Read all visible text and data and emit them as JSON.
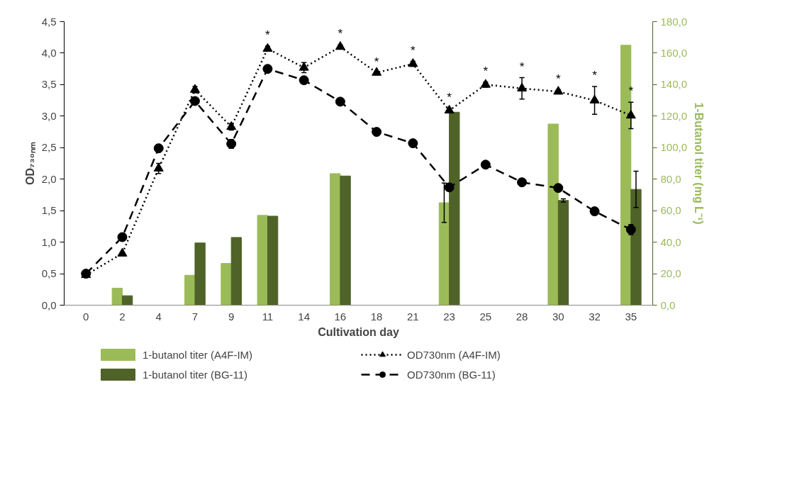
{
  "chart_data": {
    "type": "bar",
    "xlabel": "Cultivation day",
    "ylabel": "OD₇₃₀ₙₘ",
    "y2label": "1-Butanol titer (mg L⁻¹)",
    "categories": [
      "0",
      "2",
      "4",
      "7",
      "9",
      "11",
      "14",
      "16",
      "18",
      "21",
      "23",
      "25",
      "28",
      "30",
      "32",
      "35"
    ],
    "series": [
      {
        "name": "1-butanol titer (A4F-IM)",
        "axis": "y2",
        "color": "#9bbb59",
        "values": [
          null,
          10.8,
          null,
          19,
          26.5,
          57,
          null,
          83.5,
          null,
          null,
          65,
          null,
          null,
          115,
          null,
          165
        ],
        "errors": [
          null,
          null,
          null,
          null,
          null,
          null,
          null,
          null,
          null,
          null,
          12.5,
          null,
          null,
          null,
          null,
          null
        ]
      },
      {
        "name": "1-butanol titer (BG-11)",
        "axis": "y2",
        "color": "#4f6228",
        "values": [
          null,
          6,
          null,
          39.5,
          43,
          56.5,
          null,
          82,
          null,
          null,
          122.5,
          null,
          null,
          66.5,
          null,
          73.5
        ],
        "errors": [
          null,
          null,
          null,
          null,
          null,
          null,
          null,
          null,
          null,
          null,
          null,
          null,
          null,
          1,
          null,
          11.5
        ]
      },
      {
        "name": "OD730nm (A4F-IM)",
        "type": "line",
        "color": "#000000",
        "marker": "triangle",
        "line_style": "dotted",
        "values": [
          0.48,
          0.82,
          2.17,
          3.42,
          2.83,
          4.07,
          3.77,
          4.1,
          3.69,
          3.83,
          3.09,
          3.5,
          3.44,
          3.39,
          3.25,
          3.01
        ],
        "errors": [
          null,
          null,
          0.08,
          0.05,
          0.05,
          0.04,
          0.08,
          0.03,
          null,
          0.04,
          0.03,
          0.04,
          0.17,
          0.03,
          0.22,
          0.21
        ]
      },
      {
        "name": "OD730nm (BG-11)",
        "type": "line",
        "color": "#000000",
        "marker": "circle",
        "line_style": "dashed",
        "values": [
          0.5,
          1.08,
          2.49,
          3.24,
          2.56,
          3.75,
          3.57,
          3.23,
          2.75,
          2.57,
          1.87,
          2.23,
          1.95,
          1.86,
          1.49,
          1.2
        ],
        "errors": [
          null,
          null,
          0.05,
          null,
          0.07,
          0.04,
          null,
          null,
          null,
          null,
          null,
          null,
          null,
          null,
          0.05,
          0.08
        ]
      }
    ],
    "ylim": [
      0,
      4.5
    ],
    "yticks": [
      {
        "value": 0,
        "label": "0,0"
      },
      {
        "value": 0.5,
        "label": "0,5"
      },
      {
        "value": 1,
        "label": "1,0"
      },
      {
        "value": 1.5,
        "label": "1,5"
      },
      {
        "value": 2,
        "label": "2,0"
      },
      {
        "value": 2.5,
        "label": "2,5"
      },
      {
        "value": 3,
        "label": "3,0"
      },
      {
        "value": 3.5,
        "label": "3,5"
      },
      {
        "value": 4,
        "label": "4,0"
      },
      {
        "value": 4.5,
        "label": "4,5"
      }
    ],
    "y2lim": [
      0,
      180
    ],
    "y2ticks": [
      {
        "value": 0,
        "label": "0,0"
      },
      {
        "value": 20,
        "label": "20,0"
      },
      {
        "value": 40,
        "label": "40,0"
      },
      {
        "value": 60,
        "label": "60,0"
      },
      {
        "value": 80,
        "label": "80,0"
      },
      {
        "value": 100,
        "label": "100,0"
      },
      {
        "value": 120,
        "label": "120,0"
      },
      {
        "value": 140,
        "label": "140,0"
      },
      {
        "value": 160,
        "label": "160,0"
      },
      {
        "value": 180,
        "label": "180,0"
      }
    ],
    "annotations": [
      {
        "text": "*",
        "x": "11",
        "y": 4.07
      },
      {
        "text": "*",
        "x": "16",
        "y": 4.1
      },
      {
        "text": "*",
        "x": "18",
        "y": 3.69
      },
      {
        "text": "*",
        "x": "21",
        "y": 3.83
      },
      {
        "text": "*",
        "x": "23",
        "y": 3.09
      },
      {
        "text": "*",
        "x": "25",
        "y": 3.5
      },
      {
        "text": "*",
        "x": "28",
        "y": 3.44
      },
      {
        "text": "*",
        "x": "30",
        "y": 3.39
      },
      {
        "text": "*",
        "x": "32",
        "y": 3.25
      },
      {
        "text": "*",
        "x": "35",
        "y": 3.01
      }
    ],
    "grid": false,
    "legend": "bottom"
  }
}
